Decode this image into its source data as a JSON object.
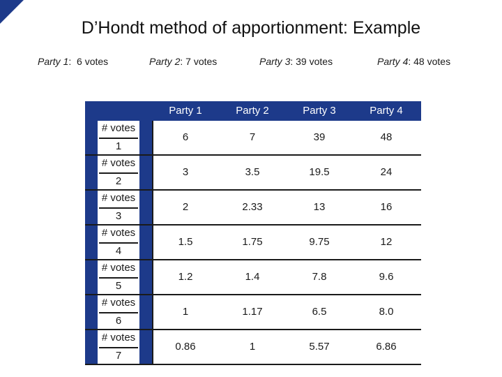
{
  "title": "D’Hondt method of apportionment: Example",
  "parties": [
    {
      "name": "Party 1",
      "votes": "6 votes"
    },
    {
      "name": "Party 2",
      "votes": "7 votes"
    },
    {
      "name": "Party 3",
      "votes": "39 votes"
    },
    {
      "name": "Party 4",
      "votes": "48 votes"
    }
  ],
  "table": {
    "headers": [
      "Party 1",
      "Party 2",
      "Party 3",
      "Party 4"
    ],
    "rows": [
      {
        "label_num": "# votes",
        "label_den": "1",
        "cells": [
          "6",
          "7",
          "39",
          "48"
        ]
      },
      {
        "label_num": "# votes",
        "label_den": "2",
        "cells": [
          "3",
          "3.5",
          "19.5",
          "24"
        ]
      },
      {
        "label_num": "# votes",
        "label_den": "3",
        "cells": [
          "2",
          "2.33",
          "13",
          "16"
        ]
      },
      {
        "label_num": "# votes",
        "label_den": "4",
        "cells": [
          "1.5",
          "1.75",
          "9.75",
          "12"
        ]
      },
      {
        "label_num": "# votes",
        "label_den": "5",
        "cells": [
          "1.2",
          "1.4",
          "7.8",
          "9.6"
        ]
      },
      {
        "label_num": "# votes",
        "label_den": "6",
        "cells": [
          "1",
          "1.17",
          "6.5",
          "8.0"
        ]
      },
      {
        "label_num": "# votes",
        "label_den": "7",
        "cells": [
          "0.86",
          "1",
          "5.57",
          "6.86"
        ]
      }
    ]
  },
  "colors": {
    "accent": "#1d3a8a",
    "text": "#1a1a1a",
    "background": "#ffffff"
  }
}
